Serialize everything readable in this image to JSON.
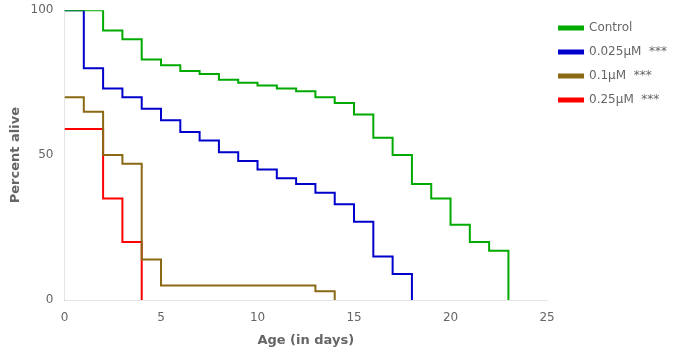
{
  "chart_data": {
    "type": "line",
    "line_style": "steps",
    "xlabel": "Age (in days)",
    "ylabel": "Percent alive",
    "xlim": [
      0,
      25
    ],
    "ylim": [
      0,
      100
    ],
    "xticks": [
      0,
      5,
      10,
      15,
      20,
      25
    ],
    "yticks": [
      0,
      50,
      100
    ],
    "grid": false,
    "legend": "right",
    "series": [
      {
        "name": "Control",
        "color": "#00aa00",
        "x": [
          0,
          1,
          2,
          3,
          4,
          5,
          6,
          7,
          8,
          9,
          10,
          11,
          12,
          13,
          14,
          15,
          16,
          17,
          18,
          19,
          20,
          21,
          22,
          23
        ],
        "values": [
          100,
          100,
          93,
          90,
          83,
          81,
          79,
          78,
          76,
          75,
          74,
          73,
          72,
          70,
          68,
          64,
          56,
          50,
          40,
          35,
          26,
          20,
          17,
          0
        ]
      },
      {
        "name": "0.025μM",
        "color": "#0000cc",
        "annotation": "***",
        "x": [
          0,
          1,
          2,
          3,
          4,
          5,
          6,
          7,
          8,
          9,
          10,
          11,
          12,
          13,
          14,
          15,
          16,
          17,
          18
        ],
        "values": [
          100,
          80,
          73,
          70,
          66,
          62,
          58,
          55,
          51,
          48,
          45,
          42,
          40,
          37,
          33,
          27,
          15,
          9,
          0
        ]
      },
      {
        "name": "0.1μM",
        "color": "#8B6914",
        "annotation": "***",
        "x": [
          0,
          1,
          2,
          3,
          4,
          5,
          6,
          7,
          8,
          9,
          10,
          11,
          12,
          13,
          14
        ],
        "values": [
          70,
          65,
          50,
          47,
          14,
          5,
          5,
          5,
          5,
          5,
          5,
          5,
          5,
          3,
          0
        ]
      },
      {
        "name": "0.25μM",
        "color": "#ff0000",
        "annotation": "***",
        "x": [
          0,
          1,
          2,
          3,
          4
        ],
        "values": [
          59,
          59,
          35,
          20,
          0
        ]
      }
    ]
  }
}
